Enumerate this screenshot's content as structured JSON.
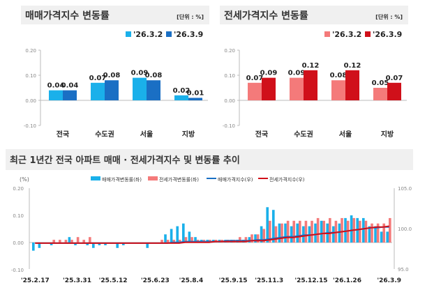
{
  "colors": {
    "sale_prev": "#1ab0ea",
    "sale_curr": "#1a6fc4",
    "jeonse_prev": "#f47a7a",
    "jeonse_curr": "#d0101a",
    "title_bg": "#f0f0f0"
  },
  "chart_data": [
    {
      "type": "bar",
      "title": "매매가격지수 변동률",
      "unit": "[단위 : %]",
      "categories": [
        "전국",
        "수도권",
        "서울",
        "지방"
      ],
      "series": [
        {
          "name": "'26.3.2",
          "values": [
            0.04,
            0.07,
            0.09,
            0.02
          ]
        },
        {
          "name": "'26.3.9",
          "values": [
            0.04,
            0.08,
            0.08,
            0.01
          ]
        }
      ],
      "ylim": [
        -0.1,
        0.2
      ],
      "yticks": [
        "0.20",
        "0.10",
        "0.00",
        "-0.10"
      ],
      "legend": "top-right"
    },
    {
      "type": "bar",
      "title": "전세가격지수 변동률",
      "unit": "[단위 : %]",
      "categories": [
        "전국",
        "수도권",
        "서울",
        "지방"
      ],
      "series": [
        {
          "name": "'26.3.2",
          "values": [
            0.07,
            0.09,
            0.08,
            0.05
          ]
        },
        {
          "name": "'26.3.9",
          "values": [
            0.09,
            0.12,
            0.12,
            0.07
          ]
        }
      ],
      "ylim": [
        -0.1,
        0.2
      ],
      "yticks": [
        "0.20",
        "0.10",
        "0.00",
        "-0.10"
      ],
      "legend": "top-right"
    },
    {
      "type": "bar+line",
      "title": "최근 1년간 전국 아파트 매매 · 전세가격지수 및 변동률 추이",
      "ylabel": "(%)",
      "ylim": [
        -0.1,
        0.2
      ],
      "yticks": [
        "0.20",
        "0.10",
        "0.00",
        "-0.10"
      ],
      "y2lim": [
        95.0,
        105.0
      ],
      "y2ticks": [
        "105.0",
        "100.0",
        "95.0"
      ],
      "xticks": [
        "'25.2.17",
        "'25.3.31",
        "'25.5.12",
        "'25.6.23",
        "'25.8.4",
        "'25.9.15",
        "'25.11.3",
        "'25.12.15",
        "'26.1.26",
        "'26.3.9"
      ],
      "legend": "top",
      "series": [
        {
          "name": "매매가격변동률(좌)",
          "kind": "bar",
          "values": [
            -0.03,
            -0.02,
            0.0,
            -0.01,
            0.0,
            0.0,
            0.02,
            -0.01,
            0.0,
            -0.01,
            -0.02,
            -0.01,
            -0.01,
            0.0,
            -0.02,
            -0.01,
            0.0,
            0.0,
            0.0,
            -0.02,
            0.0,
            0.0,
            0.03,
            0.05,
            0.06,
            0.07,
            0.04,
            0.02,
            0.01,
            0.01,
            0.01,
            0.01,
            0.01,
            0.01,
            0.01,
            0.01,
            0.02,
            0.03,
            0.06,
            0.13,
            0.12,
            0.07,
            0.07,
            0.06,
            0.07,
            0.06,
            0.06,
            0.07,
            0.08,
            0.07,
            0.06,
            0.07,
            0.09,
            0.1,
            0.09,
            0.09,
            0.06,
            0.06,
            0.04,
            0.04
          ]
        },
        {
          "name": "전세가격변동률(좌)",
          "kind": "bar",
          "values": [
            0.0,
            0.0,
            0.0,
            0.01,
            0.01,
            0.01,
            0.01,
            0.02,
            0.01,
            0.02,
            0.0,
            0.0,
            0.0,
            0.0,
            0.0,
            0.0,
            0.0,
            0.0,
            0.0,
            0.0,
            0.0,
            0.01,
            0.01,
            0.01,
            0.01,
            0.02,
            0.02,
            0.01,
            0.01,
            0.01,
            0.01,
            0.01,
            0.01,
            0.01,
            0.02,
            0.02,
            0.03,
            0.03,
            0.05,
            0.08,
            0.06,
            0.07,
            0.08,
            0.08,
            0.08,
            0.08,
            0.08,
            0.09,
            0.08,
            0.09,
            0.08,
            0.09,
            0.08,
            0.09,
            0.08,
            0.08,
            0.07,
            0.07,
            0.07,
            0.09
          ]
        },
        {
          "name": "매매가격지수(우)",
          "kind": "line",
          "values": [
            98.2,
            98.2,
            98.2,
            98.2,
            98.2,
            98.2,
            98.2,
            98.2,
            98.2,
            98.2,
            98.2,
            98.2,
            98.2,
            98.2,
            98.2,
            98.2,
            98.2,
            98.2,
            98.2,
            98.2,
            98.2,
            98.2,
            98.2,
            98.3,
            98.3,
            98.4,
            98.4,
            98.4,
            98.4,
            98.4,
            98.4,
            98.4,
            98.5,
            98.5,
            98.5,
            98.5,
            98.5,
            98.6,
            98.6,
            98.7,
            98.8,
            98.9,
            99.0,
            99.0,
            99.1,
            99.2,
            99.2,
            99.3,
            99.4,
            99.5,
            99.5,
            99.6,
            99.7,
            99.8,
            99.9,
            100.0,
            100.1,
            100.1,
            100.2,
            100.2
          ]
        },
        {
          "name": "전세가격지수(우)",
          "kind": "line",
          "values": [
            98.2,
            98.2,
            98.2,
            98.2,
            98.2,
            98.2,
            98.2,
            98.2,
            98.2,
            98.2,
            98.2,
            98.2,
            98.2,
            98.2,
            98.2,
            98.2,
            98.2,
            98.2,
            98.2,
            98.2,
            98.2,
            98.2,
            98.2,
            98.2,
            98.2,
            98.3,
            98.3,
            98.3,
            98.3,
            98.3,
            98.4,
            98.4,
            98.4,
            98.4,
            98.4,
            98.4,
            98.5,
            98.5,
            98.5,
            98.6,
            98.7,
            98.8,
            98.9,
            98.9,
            99.0,
            99.1,
            99.2,
            99.3,
            99.4,
            99.4,
            99.5,
            99.6,
            99.7,
            99.8,
            99.9,
            100.0,
            100.1,
            100.2,
            100.2,
            100.3
          ]
        }
      ]
    }
  ]
}
